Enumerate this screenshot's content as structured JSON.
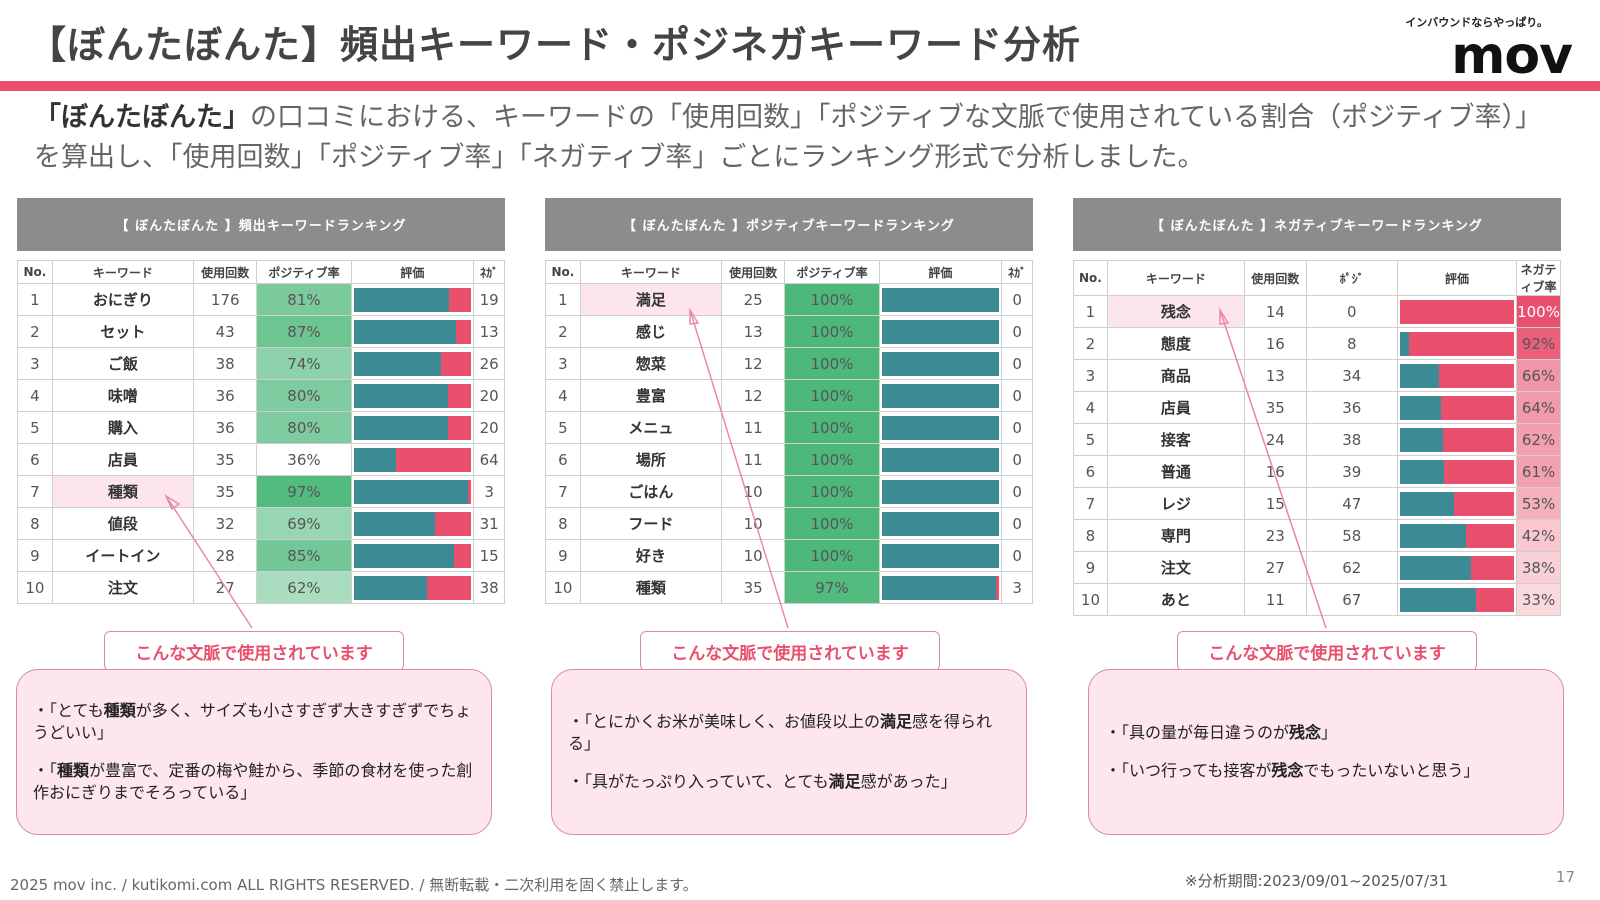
{
  "header": {
    "title": "【ぼんたぼんた】頻出キーワード・ポジネガキーワード分析",
    "logo_tagline": "インバウンドならやっぱり。",
    "logo": "mov"
  },
  "intro": {
    "brand": "「ぼんたぼんた」",
    "text": "の口コミにおける、キーワードの「使用回数」「ポジティブな文脈で使用されている割合（ポジティブ率）」を算出し、「使用回数」「ポジティブ率」「ネガティブ率」ごとにランキング形式で分析しました。"
  },
  "tables": [
    {
      "title": "【 ぼんたぼんた 】頻出キーワードランキング",
      "headers": [
        "No.",
        "キーワード",
        "使用回数",
        "ポジティブ率",
        "評価",
        "ﾈｶﾞ"
      ],
      "rows": [
        {
          "no": "1",
          "keyword": "おにぎり",
          "count": "176",
          "rate": "81%",
          "other": "19",
          "pos": 81
        },
        {
          "no": "2",
          "keyword": "セット",
          "count": "43",
          "rate": "87%",
          "other": "13",
          "pos": 87
        },
        {
          "no": "3",
          "keyword": "ご飯",
          "count": "38",
          "rate": "74%",
          "other": "26",
          "pos": 74
        },
        {
          "no": "4",
          "keyword": "味噌",
          "count": "36",
          "rate": "80%",
          "other": "20",
          "pos": 80
        },
        {
          "no": "5",
          "keyword": "購入",
          "count": "36",
          "rate": "80%",
          "other": "20",
          "pos": 80
        },
        {
          "no": "6",
          "keyword": "店員",
          "count": "35",
          "rate": "36%",
          "other": "64",
          "pos": 36
        },
        {
          "no": "7",
          "keyword": "種類",
          "count": "35",
          "rate": "97%",
          "other": "3",
          "pos": 97
        },
        {
          "no": "8",
          "keyword": "値段",
          "count": "32",
          "rate": "69%",
          "other": "31",
          "pos": 69
        },
        {
          "no": "9",
          "keyword": "イートイン",
          "count": "28",
          "rate": "85%",
          "other": "15",
          "pos": 85
        },
        {
          "no": "10",
          "keyword": "注文",
          "count": "27",
          "rate": "62%",
          "other": "38",
          "pos": 62
        }
      ]
    },
    {
      "title": "【 ぼんたぼんた 】ポジティブキーワードランキング",
      "headers": [
        "No.",
        "キーワード",
        "使用回数",
        "ポジティブ率",
        "評価",
        "ﾈｶﾞ"
      ],
      "rows": [
        {
          "no": "1",
          "keyword": "満足",
          "count": "25",
          "rate": "100%",
          "other": "0",
          "pos": 100
        },
        {
          "no": "2",
          "keyword": "感じ",
          "count": "13",
          "rate": "100%",
          "other": "0",
          "pos": 100
        },
        {
          "no": "3",
          "keyword": "惣菜",
          "count": "12",
          "rate": "100%",
          "other": "0",
          "pos": 100
        },
        {
          "no": "4",
          "keyword": "豊富",
          "count": "12",
          "rate": "100%",
          "other": "0",
          "pos": 100
        },
        {
          "no": "5",
          "keyword": "メニュ",
          "count": "11",
          "rate": "100%",
          "other": "0",
          "pos": 100
        },
        {
          "no": "6",
          "keyword": "場所",
          "count": "11",
          "rate": "100%",
          "other": "0",
          "pos": 100
        },
        {
          "no": "7",
          "keyword": "ごはん",
          "count": "10",
          "rate": "100%",
          "other": "0",
          "pos": 100
        },
        {
          "no": "8",
          "keyword": "フード",
          "count": "10",
          "rate": "100%",
          "other": "0",
          "pos": 100
        },
        {
          "no": "9",
          "keyword": "好き",
          "count": "10",
          "rate": "100%",
          "other": "0",
          "pos": 100
        },
        {
          "no": "10",
          "keyword": "種類",
          "count": "35",
          "rate": "97%",
          "other": "3",
          "pos": 97
        }
      ]
    },
    {
      "title": "【 ぼんたぼんた 】ネガティブキーワードランキング",
      "headers": [
        "No.",
        "キーワード",
        "使用回数",
        "ﾎﾟｼﾞ",
        "評価",
        "ネガティブ率"
      ],
      "rows": [
        {
          "no": "1",
          "keyword": "残念",
          "count": "14",
          "other": "0",
          "rate": "100%",
          "pos": 0
        },
        {
          "no": "2",
          "keyword": "態度",
          "count": "16",
          "other": "8",
          "rate": "92%",
          "pos": 8
        },
        {
          "no": "3",
          "keyword": "商品",
          "count": "13",
          "other": "34",
          "rate": "66%",
          "pos": 34
        },
        {
          "no": "4",
          "keyword": "店員",
          "count": "35",
          "other": "36",
          "rate": "64%",
          "pos": 36
        },
        {
          "no": "5",
          "keyword": "接客",
          "count": "24",
          "other": "38",
          "rate": "62%",
          "pos": 38
        },
        {
          "no": "6",
          "keyword": "普通",
          "count": "16",
          "other": "39",
          "rate": "61%",
          "pos": 39
        },
        {
          "no": "7",
          "keyword": "レジ",
          "count": "15",
          "other": "47",
          "rate": "53%",
          "pos": 47
        },
        {
          "no": "8",
          "keyword": "専門",
          "count": "23",
          "other": "58",
          "rate": "42%",
          "pos": 58
        },
        {
          "no": "9",
          "keyword": "注文",
          "count": "27",
          "other": "62",
          "rate": "38%",
          "pos": 62
        },
        {
          "no": "10",
          "keyword": "あと",
          "count": "11",
          "other": "67",
          "rate": "33%",
          "pos": 67
        }
      ]
    }
  ],
  "context_label": "こんな文脈で使用されています",
  "quotes": [
    [
      {
        "pre": "・「とても",
        "kw": "種類",
        "post": "が多く、サイズも小さすぎず大きすぎずでちょうどいい」"
      },
      {
        "pre": "・「",
        "kw": "種類",
        "post": "が豊富で、定番の梅や鮭から、季節の食材を使った創作おにぎりまでそろっている」"
      }
    ],
    [
      {
        "pre": "・「とにかくお米が美味しく、お値段以上の",
        "kw": "満足",
        "post": "感を得られる」"
      },
      {
        "pre": "・「具がたっぷり入っていて、とても",
        "kw": "満足",
        "post": "感があった」"
      }
    ],
    [
      {
        "pre": "・「具の量が毎日違うのが",
        "kw": "残念",
        "post": "」"
      },
      {
        "pre": "・「いつ行っても接客が",
        "kw": "残念",
        "post": "でもったいないと思う」"
      }
    ]
  ],
  "footer": {
    "copyright": "2025 mov inc. / kutikomi.com ALL RIGHTS RESERVED. / 無断転載・二次利用を固く禁止します。",
    "period": "※分析期間:2023/09/01~2025/07/31",
    "page": "17"
  },
  "colors": {
    "accent": "#e8506e",
    "positive_bar": "#3c8b94",
    "negative_bar": "#e8506e",
    "green_heat": "#4db87a",
    "red_heat": "#e8506e"
  }
}
